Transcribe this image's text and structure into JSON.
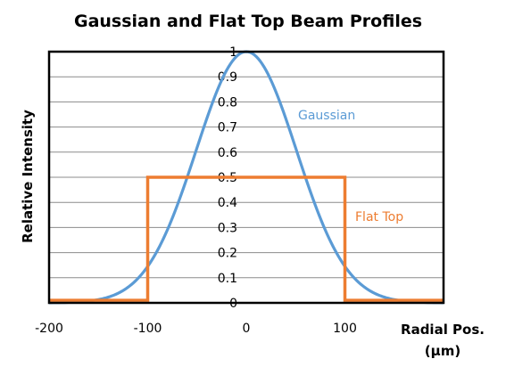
{
  "chart_data": {
    "type": "line",
    "title": "Gaussian and Flat Top Beam Profiles",
    "ylabel": "Relative Intensity",
    "xlabel_line1": "Radial Pos.",
    "xlabel_line2": "(μm)",
    "xlim": [
      -200,
      200
    ],
    "ylim": [
      0,
      1
    ],
    "xticks": [
      -200,
      -100,
      0,
      100
    ],
    "xtick_labels": [
      "-200",
      "-100",
      "0",
      "100"
    ],
    "yticks": [
      0,
      0.1,
      0.2,
      0.3,
      0.4,
      0.5,
      0.6,
      0.7,
      0.8,
      0.9,
      1
    ],
    "ytick_labels": [
      "0",
      "0.1",
      "0.2",
      "0.3",
      "0.4",
      "0.5",
      "0.6",
      "0.7",
      "0.8",
      "0.9",
      "1"
    ],
    "grid": true,
    "series": [
      {
        "name": "Gaussian",
        "color": "#5b9bd5",
        "x": [
          -200,
          -180,
          -160,
          -140,
          -120,
          -100,
          -80,
          -60,
          -40,
          -20,
          0,
          20,
          40,
          60,
          80,
          100,
          120,
          140,
          160,
          180,
          200
        ],
        "y": [
          0.0,
          0.003,
          0.013,
          0.041,
          0.102,
          0.2,
          0.325,
          0.5,
          0.73,
          0.92,
          1.0,
          0.92,
          0.73,
          0.5,
          0.325,
          0.2,
          0.102,
          0.041,
          0.013,
          0.003,
          0.0
        ]
      },
      {
        "name": "Flat Top",
        "color": "#ed7d31",
        "x": [
          -200,
          -100,
          -100,
          100,
          100,
          200
        ],
        "y": [
          0.01,
          0.01,
          0.5,
          0.5,
          0.01,
          0.01
        ]
      }
    ]
  }
}
